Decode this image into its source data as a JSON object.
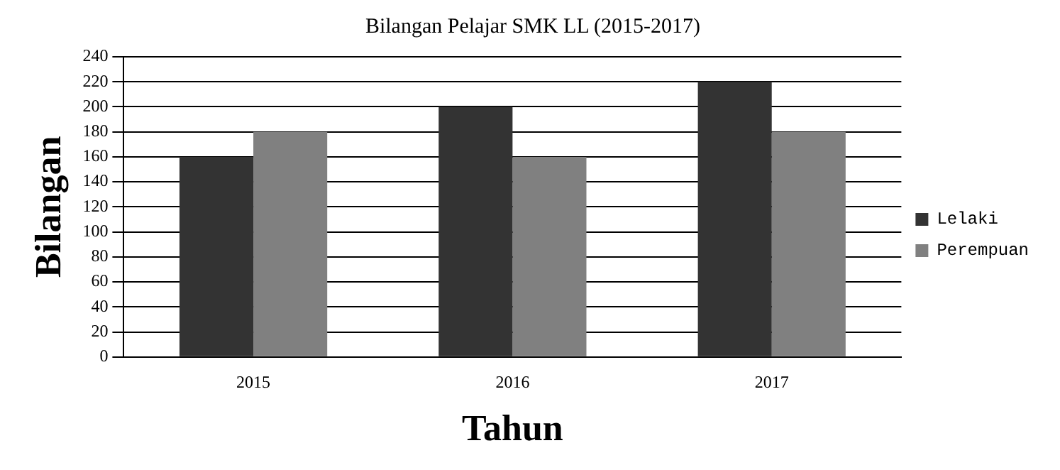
{
  "chart_data": {
    "type": "bar",
    "title": "Bilangan Pelajar SMK LL (2015-2017)",
    "xlabel": "Tahun",
    "ylabel": "Bilangan",
    "categories": [
      "2015",
      "2016",
      "2017"
    ],
    "series": [
      {
        "name": "Lelaki",
        "color": "#333333",
        "values": [
          160,
          200,
          220
        ]
      },
      {
        "name": "Perempuan",
        "color": "#808080",
        "values": [
          180,
          160,
          180
        ]
      }
    ],
    "ylim": [
      0,
      240
    ],
    "yticks": [
      0,
      20,
      40,
      60,
      80,
      100,
      120,
      140,
      160,
      180,
      200,
      220,
      240
    ],
    "grid": "y",
    "legend": "right"
  }
}
